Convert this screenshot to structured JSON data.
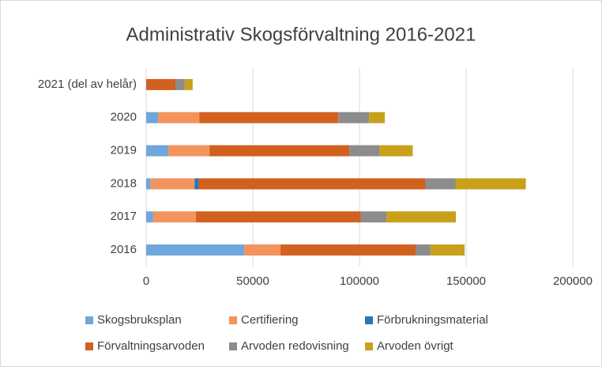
{
  "chart_data": {
    "type": "stacked-barh",
    "title": "Administrativ Skogsförvaltning 2016-2021",
    "categories": [
      "2016",
      "2017",
      "2018",
      "2019",
      "2020",
      "2021 (del av helår)"
    ],
    "series": [
      {
        "name": "Skogsbruksplan",
        "color": "#6fa6dc",
        "values": [
          46000,
          3300,
          2000,
          10400,
          5600,
          0
        ]
      },
      {
        "name": "Certifiering",
        "color": "#f2945c",
        "values": [
          17000,
          20000,
          20700,
          19300,
          19300,
          0
        ]
      },
      {
        "name": "Förbrukningsmaterial",
        "color": "#2e75b6",
        "values": [
          0,
          0,
          1900,
          0,
          0,
          0
        ]
      },
      {
        "name": "Förvaltningsarvoden",
        "color": "#d2601e",
        "values": [
          63300,
          77400,
          106300,
          65600,
          65200,
          13700
        ]
      },
      {
        "name": "Arvoden redovisning",
        "color": "#8c8c8c",
        "values": [
          7000,
          11900,
          14100,
          14100,
          14400,
          4400
        ]
      },
      {
        "name": "Arvoden övrigt",
        "color": "#c9a01a",
        "values": [
          16000,
          32600,
          33000,
          15600,
          7400,
          3700
        ]
      }
    ],
    "xlim": [
      0,
      200000
    ],
    "xticks": [
      0,
      50000,
      100000,
      150000,
      200000
    ],
    "grid": true,
    "legend": "bottom"
  }
}
